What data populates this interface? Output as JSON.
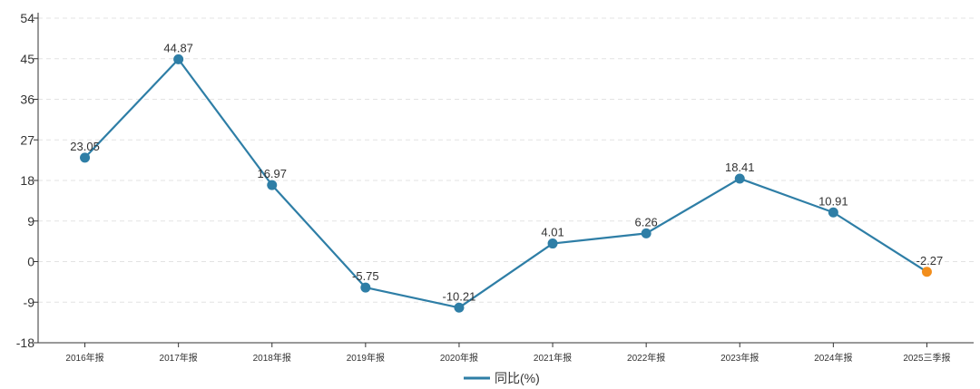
{
  "chart_data": {
    "type": "line",
    "categories": [
      "2016年报",
      "2017年报",
      "2018年报",
      "2019年报",
      "2020年报",
      "2021年报",
      "2022年报",
      "2023年报",
      "2024年报",
      "2025三季报"
    ],
    "series": [
      {
        "name": "同比(%)",
        "values": [
          23.05,
          44.87,
          16.97,
          -5.75,
          -10.21,
          4.01,
          6.26,
          18.41,
          10.91,
          -2.27
        ],
        "data_labels": [
          "23.05",
          "44.87",
          "16.97",
          "-5.75",
          "-10.21",
          "4.01",
          "6.26",
          "18.41",
          "10.91",
          "-2.27"
        ],
        "color": "#2e7ea6",
        "highlight_last_color": "#f28e1c"
      }
    ],
    "ylim": [
      -18,
      54
    ],
    "yticks": [
      54,
      45,
      36,
      27,
      18,
      9,
      0,
      -9,
      -18
    ],
    "ytick_labels": [
      "54",
      "45",
      "36",
      "27",
      "18",
      "9",
      "0",
      "-9",
      "-18"
    ],
    "grid": "horizontal-dashed",
    "legend": "bottom-center",
    "title": "",
    "xlabel": "",
    "ylabel": ""
  }
}
